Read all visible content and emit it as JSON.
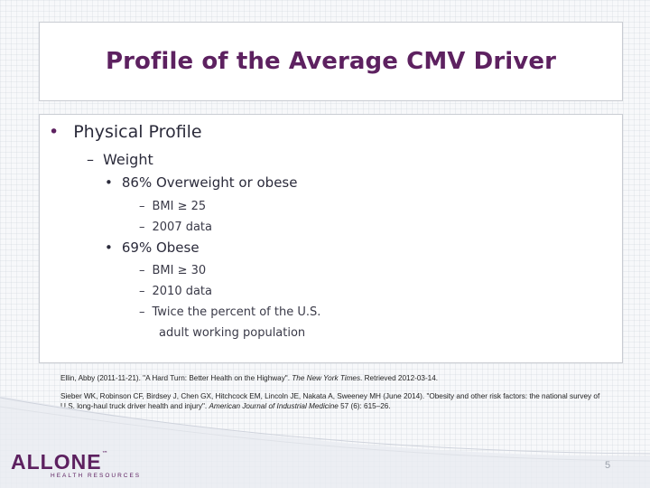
{
  "title": "Profile of the Average CMV Driver",
  "bullets": {
    "level1": "Physical Profile",
    "level2": "Weight",
    "item1": {
      "label": "86% Overweight or obese",
      "subs": [
        "BMI ≥ 25",
        "2007 data"
      ]
    },
    "item2": {
      "label": "69% Obese",
      "subs": [
        "BMI ≥ 30",
        "2010 data"
      ],
      "sub3_line1": "Twice the percent of the U.S.",
      "sub3_line2": "adult working population"
    }
  },
  "references": {
    "ref1_pre": "Ellin, Abby (2011-11-21). \"A Hard Turn: Better Health on the Highway\". ",
    "ref1_journal": "The New York Times",
    "ref1_post": ". Retrieved 2012-03-14.",
    "ref2_pre": "Sieber WK, Robinson CF, Birdsey J, Chen GX, Hitchcock EM, Lincoln JE, Nakata A, Sweeney MH (June 2014). \"Obesity and other risk factors: the national survey of U.S. long-haul truck driver health and injury\". ",
    "ref2_journal": "American Journal of Industrial Medicine",
    "ref2_post": " 57 (6): 615–26."
  },
  "logo": {
    "main": "ALLONE",
    "tm": "™",
    "sub": "HEALTH RESOURCES"
  },
  "page_number": "5",
  "colors": {
    "accent": "#5d2160",
    "text": "#2b2b3b"
  }
}
